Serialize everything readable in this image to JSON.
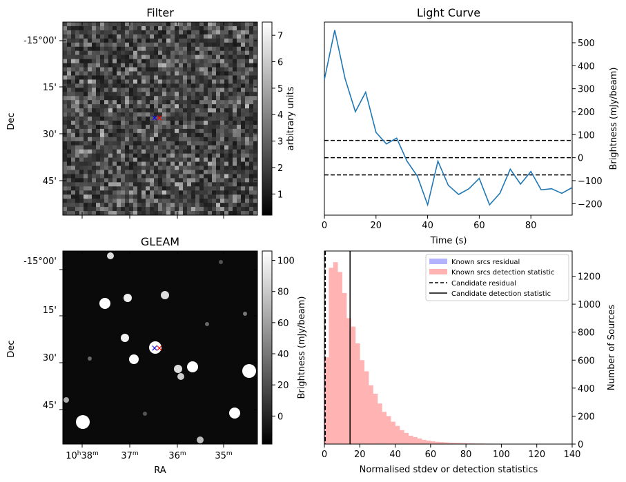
{
  "filter_panel": {
    "title": "Filter",
    "ylabel": "Dec",
    "dec_ticks": [
      "-15°00'",
      "15'",
      "30'",
      "45'"
    ],
    "colorbar": {
      "label": "arbitrary units",
      "ticks": [
        "1",
        "2",
        "3",
        "4",
        "5",
        "6",
        "7"
      ],
      "range": [
        0.2,
        7.5
      ]
    }
  },
  "gleam_panel": {
    "title": "GLEAM",
    "ylabel": "Dec",
    "xlabel": "RA",
    "dec_ticks": [
      "-15°00'",
      "15'",
      "30'",
      "45'"
    ],
    "ra_ticks": [
      {
        "main": "10",
        "h": "h",
        "m": "38",
        "msup": "m"
      },
      {
        "main": "37",
        "msup": "m"
      },
      {
        "main": "36",
        "msup": "m"
      },
      {
        "main": "35",
        "msup": "m"
      }
    ],
    "colorbar": {
      "label": "Brightness (mJy/beam)",
      "ticks": [
        "0",
        "20",
        "40",
        "60",
        "80",
        "100"
      ],
      "range": [
        -18,
        106
      ]
    }
  },
  "markers": {
    "blue": "#0000ff",
    "red": "#ff0000",
    "symbol": "×"
  },
  "chart_data": [
    {
      "type": "line",
      "title": "Light Curve",
      "xlabel": "Time (s)",
      "ylabel": "Brightness (mJy/beam)",
      "xlim": [
        0,
        96
      ],
      "ylim": [
        -250,
        590
      ],
      "xticks": [
        0,
        20,
        40,
        60,
        80
      ],
      "yticks": [
        -200,
        -100,
        0,
        100,
        200,
        300,
        400,
        500
      ],
      "color": "#1f77b4",
      "x": [
        0,
        4,
        8,
        12,
        16,
        20,
        24,
        28,
        32,
        36,
        40,
        44,
        48,
        52,
        56,
        60,
        64,
        68,
        72,
        76,
        80,
        84,
        88,
        92,
        96
      ],
      "y": [
        340,
        555,
        345,
        200,
        285,
        110,
        60,
        85,
        -15,
        -80,
        -205,
        -15,
        -120,
        -160,
        -135,
        -90,
        -205,
        -155,
        -50,
        -115,
        -60,
        -140,
        -135,
        -155,
        -130
      ],
      "hlines": [
        75,
        0,
        -75
      ],
      "hline_style": "dashed"
    },
    {
      "type": "bar",
      "xlabel": "Normalised stdev or detection statistics",
      "ylabel": "Number of Sources",
      "xlim": [
        0,
        140
      ],
      "ylim": [
        0,
        1380
      ],
      "xticks": [
        0,
        20,
        40,
        60,
        80,
        100,
        120,
        140
      ],
      "yticks": [
        0,
        200,
        400,
        600,
        800,
        1000,
        1200
      ],
      "bin_width": 2.5,
      "bin_start": 0,
      "series": [
        {
          "name": "Known srcs residual",
          "color": "#b3b3ff",
          "values": [
            60
          ]
        },
        {
          "name": "Known srcs detection statistic",
          "color": "#ffb3b3",
          "values": [
            620,
            1260,
            1300,
            1230,
            1080,
            900,
            840,
            720,
            600,
            520,
            420,
            360,
            290,
            230,
            200,
            160,
            130,
            100,
            80,
            60,
            50,
            40,
            30,
            25,
            20,
            16,
            14,
            12,
            10,
            9,
            8,
            7,
            6,
            5,
            4,
            4,
            3,
            3,
            2,
            2,
            2,
            2,
            2,
            2,
            2,
            2,
            2,
            2,
            2,
            2,
            2,
            2,
            2,
            2,
            2,
            2
          ]
        }
      ],
      "vlines": [
        {
          "name": "Candidate residual",
          "x": 0.5,
          "style": "dashed"
        },
        {
          "name": "Candidate detection statistic",
          "x": 14.5,
          "style": "solid"
        }
      ],
      "legend_position": "top-right"
    }
  ]
}
